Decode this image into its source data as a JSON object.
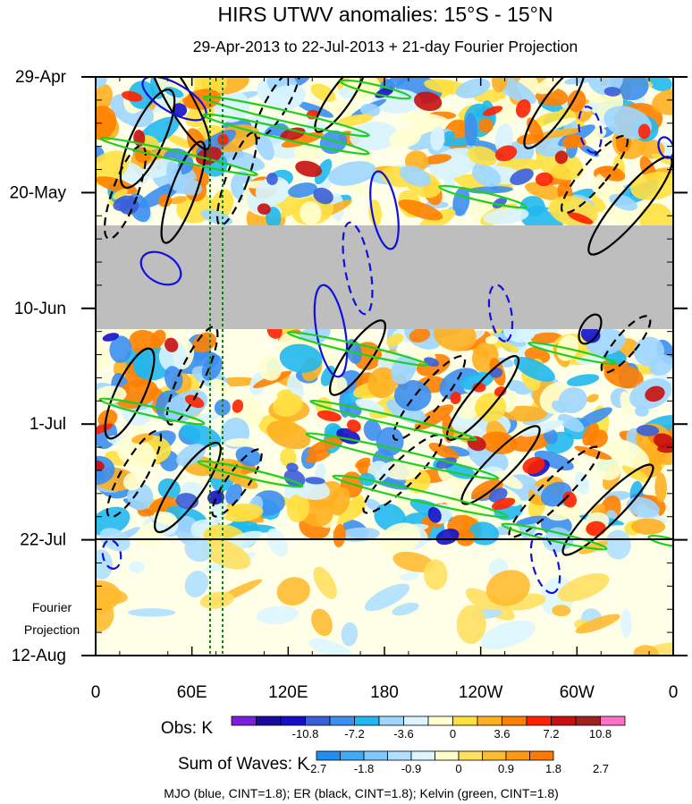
{
  "chart_data": {
    "type": "heatmap",
    "title": "HIRS UTWV anomalies: 15°S - 15°N",
    "subtitle": "29-Apr-2013 to 22-Jul-2013 + 21-day Fourier Projection",
    "x_ticks": [
      "0",
      "60E",
      "120E",
      "180",
      "120W",
      "60W",
      "0"
    ],
    "y_ticks": [
      "29-Apr",
      "20-May",
      "10-Jun",
      "1-Jul",
      "22-Jul",
      "12-Aug"
    ],
    "projection_label": [
      "Fourier",
      "Projection"
    ],
    "obs_colorbar": {
      "label": "Obs: K",
      "tick_labels": [
        "-10.8",
        "-7.2",
        "-3.6",
        "0",
        "3.6",
        "7.2",
        "10.8"
      ],
      "colors": [
        "#7a1fe0",
        "#1a0aa0",
        "#1410c8",
        "#3a5ed8",
        "#3c8ff0",
        "#20b8f0",
        "#9fd6ff",
        "#d8f4ff",
        "#ffffd0",
        "#ffe040",
        "#ffb020",
        "#ff8000",
        "#ff2000",
        "#c81010",
        "#a02020",
        "#ff70c8"
      ]
    },
    "waves_colorbar": {
      "label": "Sum of Waves: K",
      "tick_labels": [
        "-2.7",
        "-1.8",
        "-0.9",
        "0",
        "0.9",
        "1.8",
        "2.7"
      ],
      "colors": [
        "#1e8ef0",
        "#40aaf8",
        "#7cc8ff",
        "#b0e0ff",
        "#dcf6ff",
        "#ffffc8",
        "#ffe060",
        "#ffbb30",
        "#ff9a10",
        "#ff7800"
      ]
    },
    "contour_legend": "MJO (blue, CINT=1.8); ER (black, CINT=1.8); Kelvin (green, CINT=1.8)",
    "contour_colors": {
      "MJO": "#1010e0",
      "ER": "#000000",
      "Kelvin": "#20d020"
    },
    "missing_color": "#bebebe",
    "missing_data_period": [
      "26-May",
      "14-Jun"
    ],
    "reference_longitudes": [
      "72E",
      "80E"
    ],
    "observation_end": "22-Jul"
  }
}
